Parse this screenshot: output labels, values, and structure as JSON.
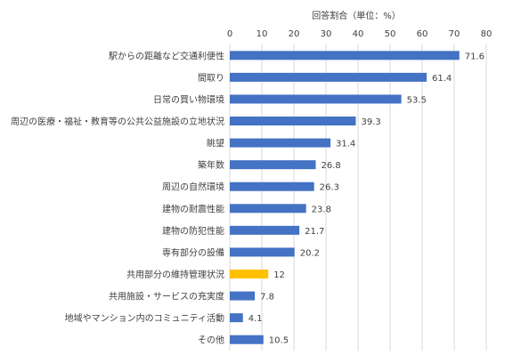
{
  "chart_data": {
    "type": "barh",
    "title": "回答割合（単位：%）",
    "categories": [
      "駅からの距離など交通利便性",
      "間取り",
      "日常の買い物環境",
      "周辺の医療・福祉・教育等の公共公益施設の立地状況",
      "眺望",
      "築年数",
      "周辺の自然環境",
      "建物の耐震性能",
      "建物の防犯性能",
      "専有部分の設備",
      "共用部分の維持管理状況",
      "共用施設・サービスの充実度",
      "地域やマンション内のコミュニティ活動",
      "その他"
    ],
    "values": [
      71.6,
      61.4,
      53.5,
      39.3,
      31.4,
      26.8,
      26.3,
      23.8,
      21.7,
      20.2,
      12,
      7.8,
      4.1,
      10.5
    ],
    "colors": [
      "#4472c4",
      "#4472c4",
      "#4472c4",
      "#4472c4",
      "#4472c4",
      "#4472c4",
      "#4472c4",
      "#4472c4",
      "#4472c4",
      "#4472c4",
      "#ffc000",
      "#4472c4",
      "#4472c4",
      "#4472c4"
    ],
    "xlim": [
      0,
      80
    ],
    "xticks": [
      0,
      10,
      20,
      30,
      40,
      50,
      60,
      70,
      80
    ],
    "grid": true
  }
}
